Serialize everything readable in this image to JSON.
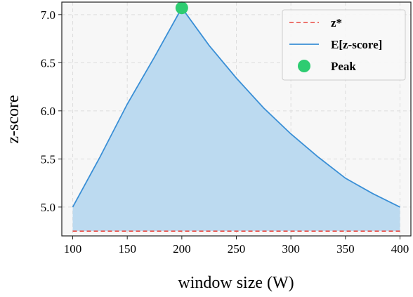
{
  "chart_data": {
    "type": "line",
    "xlabel": "window size (W)",
    "ylabel": "z-score",
    "xlim": [
      90,
      410
    ],
    "ylim": [
      4.7,
      7.13
    ],
    "xticks": [
      100,
      150,
      200,
      250,
      300,
      350,
      400
    ],
    "yticks": [
      5.0,
      5.5,
      6.0,
      6.5,
      7.0
    ],
    "ytick_labels": [
      "5.0",
      "5.5",
      "6.0",
      "6.5",
      "7.0"
    ],
    "grid": true,
    "legend_position": "top-right",
    "series": [
      {
        "name": "z*",
        "style": "dashed",
        "color": "#e8473f",
        "x": [
          100,
          400
        ],
        "y": [
          4.75,
          4.75
        ]
      },
      {
        "name": "E[z-score]",
        "style": "solid",
        "color": "#3a8fd6",
        "fill_color": "#bcdaf0",
        "x": [
          100,
          125,
          150,
          175,
          200,
          225,
          250,
          275,
          300,
          325,
          350,
          375,
          400
        ],
        "y": [
          5.0,
          5.52,
          6.07,
          6.56,
          7.07,
          6.68,
          6.34,
          6.03,
          5.76,
          5.52,
          5.3,
          5.14,
          5.0
        ]
      },
      {
        "name": "Peak",
        "style": "marker",
        "color": "#2ecc71",
        "x": [
          200
        ],
        "y": [
          7.07
        ]
      }
    ]
  }
}
